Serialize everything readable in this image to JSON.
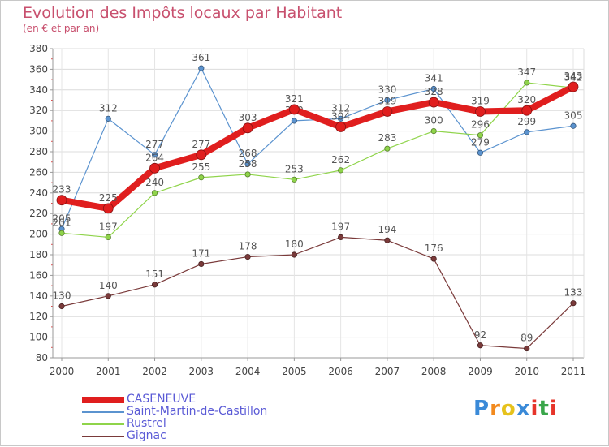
{
  "header": {
    "title": "Evolution des Impôts locaux par Habitant",
    "subtitle": "(en € et par an)"
  },
  "chart_data": {
    "type": "line",
    "title": "Evolution des Impôts locaux par Habitant",
    "subtitle": "(en € et par an)",
    "xlabel": "",
    "ylabel": "",
    "categories": [
      "2000",
      "2001",
      "2002",
      "2003",
      "2004",
      "2005",
      "2006",
      "2007",
      "2008",
      "2009",
      "2010",
      "2011"
    ],
    "ylim": [
      80,
      380
    ],
    "ytick_step": 20,
    "grid": true,
    "legend_position": "bottom-left",
    "series": [
      {
        "name": "Saint-Martin-de-Castillon",
        "color": "#5b93cf",
        "values": [
          205,
          312,
          277,
          361,
          268,
          310,
          312,
          330,
          341,
          279,
          299,
          305
        ],
        "labels": [
          "205",
          "312",
          "277",
          "361",
          "268",
          "310",
          "312",
          "330",
          "341",
          "279",
          "299",
          "305"
        ]
      },
      {
        "name": "Rustrel",
        "color": "#8fd44a",
        "values": [
          201,
          197,
          240,
          255,
          258,
          253,
          262,
          283,
          300,
          296,
          347,
          342
        ],
        "labels": [
          "201",
          "197",
          "240",
          "255",
          "258",
          "253",
          "262",
          "283",
          "300",
          "296",
          "347",
          "342"
        ]
      },
      {
        "name": "Gignac",
        "color": "#7a3a3a",
        "values": [
          130,
          140,
          151,
          171,
          178,
          180,
          197,
          194,
          176,
          92,
          89,
          133
        ],
        "labels": [
          "130",
          "140",
          "151",
          "171",
          "178",
          "180",
          "197",
          "194",
          "176",
          "92",
          "89",
          "133"
        ]
      },
      {
        "name": "CASENEUVE",
        "color": "#e01e1e",
        "emphasis": true,
        "values": [
          233,
          225,
          264,
          277,
          303,
          321,
          304,
          319,
          328,
          319,
          320,
          343
        ],
        "labels": [
          "233",
          "225",
          "264",
          "277",
          "303",
          "321",
          "304",
          "319",
          "328",
          "319",
          "320",
          "343"
        ]
      }
    ]
  },
  "legend": {
    "items": [
      {
        "label": "CASENEUVE",
        "color": "#e01e1e"
      },
      {
        "label": "Saint-Martin-de-Castillon",
        "color": "#5b93cf"
      },
      {
        "label": "Rustrel",
        "color": "#8fd44a"
      },
      {
        "label": "Gignac",
        "color": "#7a3a3a"
      }
    ]
  },
  "logo": {
    "text": "Proxiti",
    "letters": [
      {
        "char": "P",
        "color": "#3a8ad8"
      },
      {
        "char": "r",
        "color": "#f28a1e"
      },
      {
        "char": "o",
        "color": "#e6c21c"
      },
      {
        "char": "x",
        "color": "#3a8ad8"
      },
      {
        "char": "i",
        "color": "#e6342a"
      },
      {
        "char": "t",
        "color": "#3aa64a"
      },
      {
        "char": "i",
        "color": "#e6342a"
      }
    ]
  }
}
